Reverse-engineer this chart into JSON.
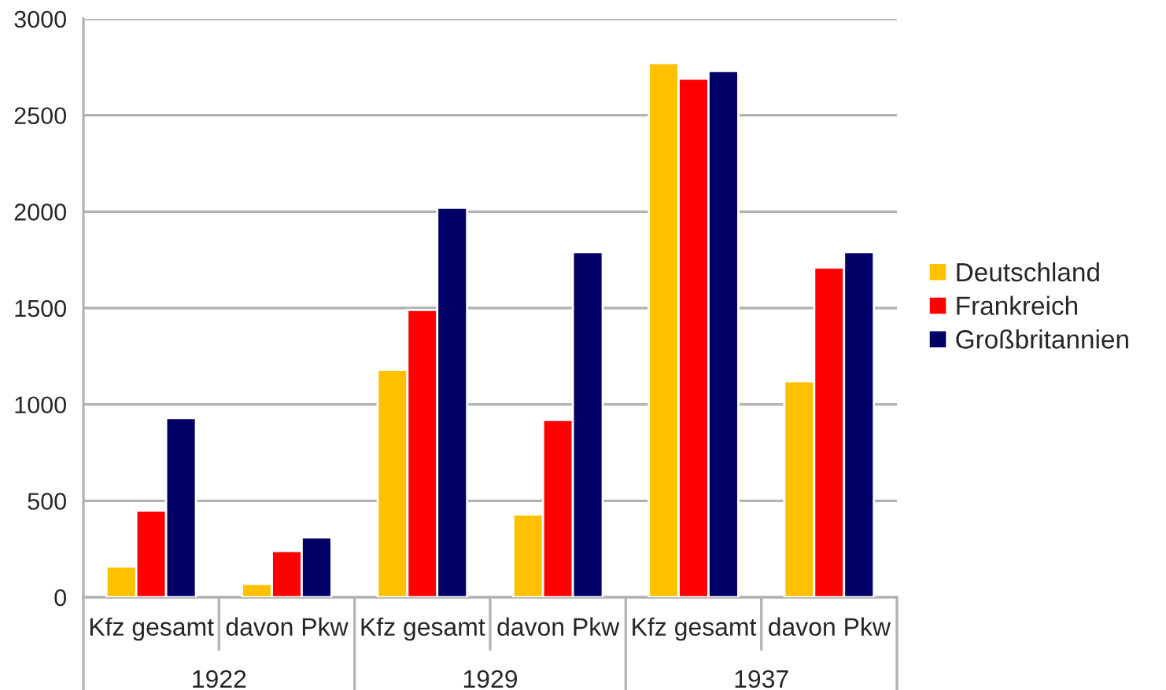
{
  "chart_data": {
    "type": "bar",
    "categories": [
      "Kfz gesamt",
      "davon Pkw",
      "Kfz gesamt",
      "davon Pkw",
      "Kfz gesamt",
      "davon Pkw"
    ],
    "series": [
      {
        "name": "Deutschland",
        "color": "#ffc000",
        "values": [
          160,
          70,
          1180,
          430,
          2770,
          1120
        ]
      },
      {
        "name": "Frankreich",
        "color": "#ff0000",
        "values": [
          450,
          240,
          1490,
          920,
          2690,
          1710
        ]
      },
      {
        "name": "Großbritannien",
        "color": "#000066",
        "values": [
          930,
          310,
          2020,
          1790,
          2730,
          1790
        ]
      }
    ],
    "annotations": [
      "1922",
      "1929",
      "1937"
    ],
    "ylim": [
      0,
      3000
    ],
    "yticks": [
      0,
      500,
      1000,
      1500,
      2000,
      2500,
      3000
    ],
    "grid": "y",
    "legend": "right"
  }
}
